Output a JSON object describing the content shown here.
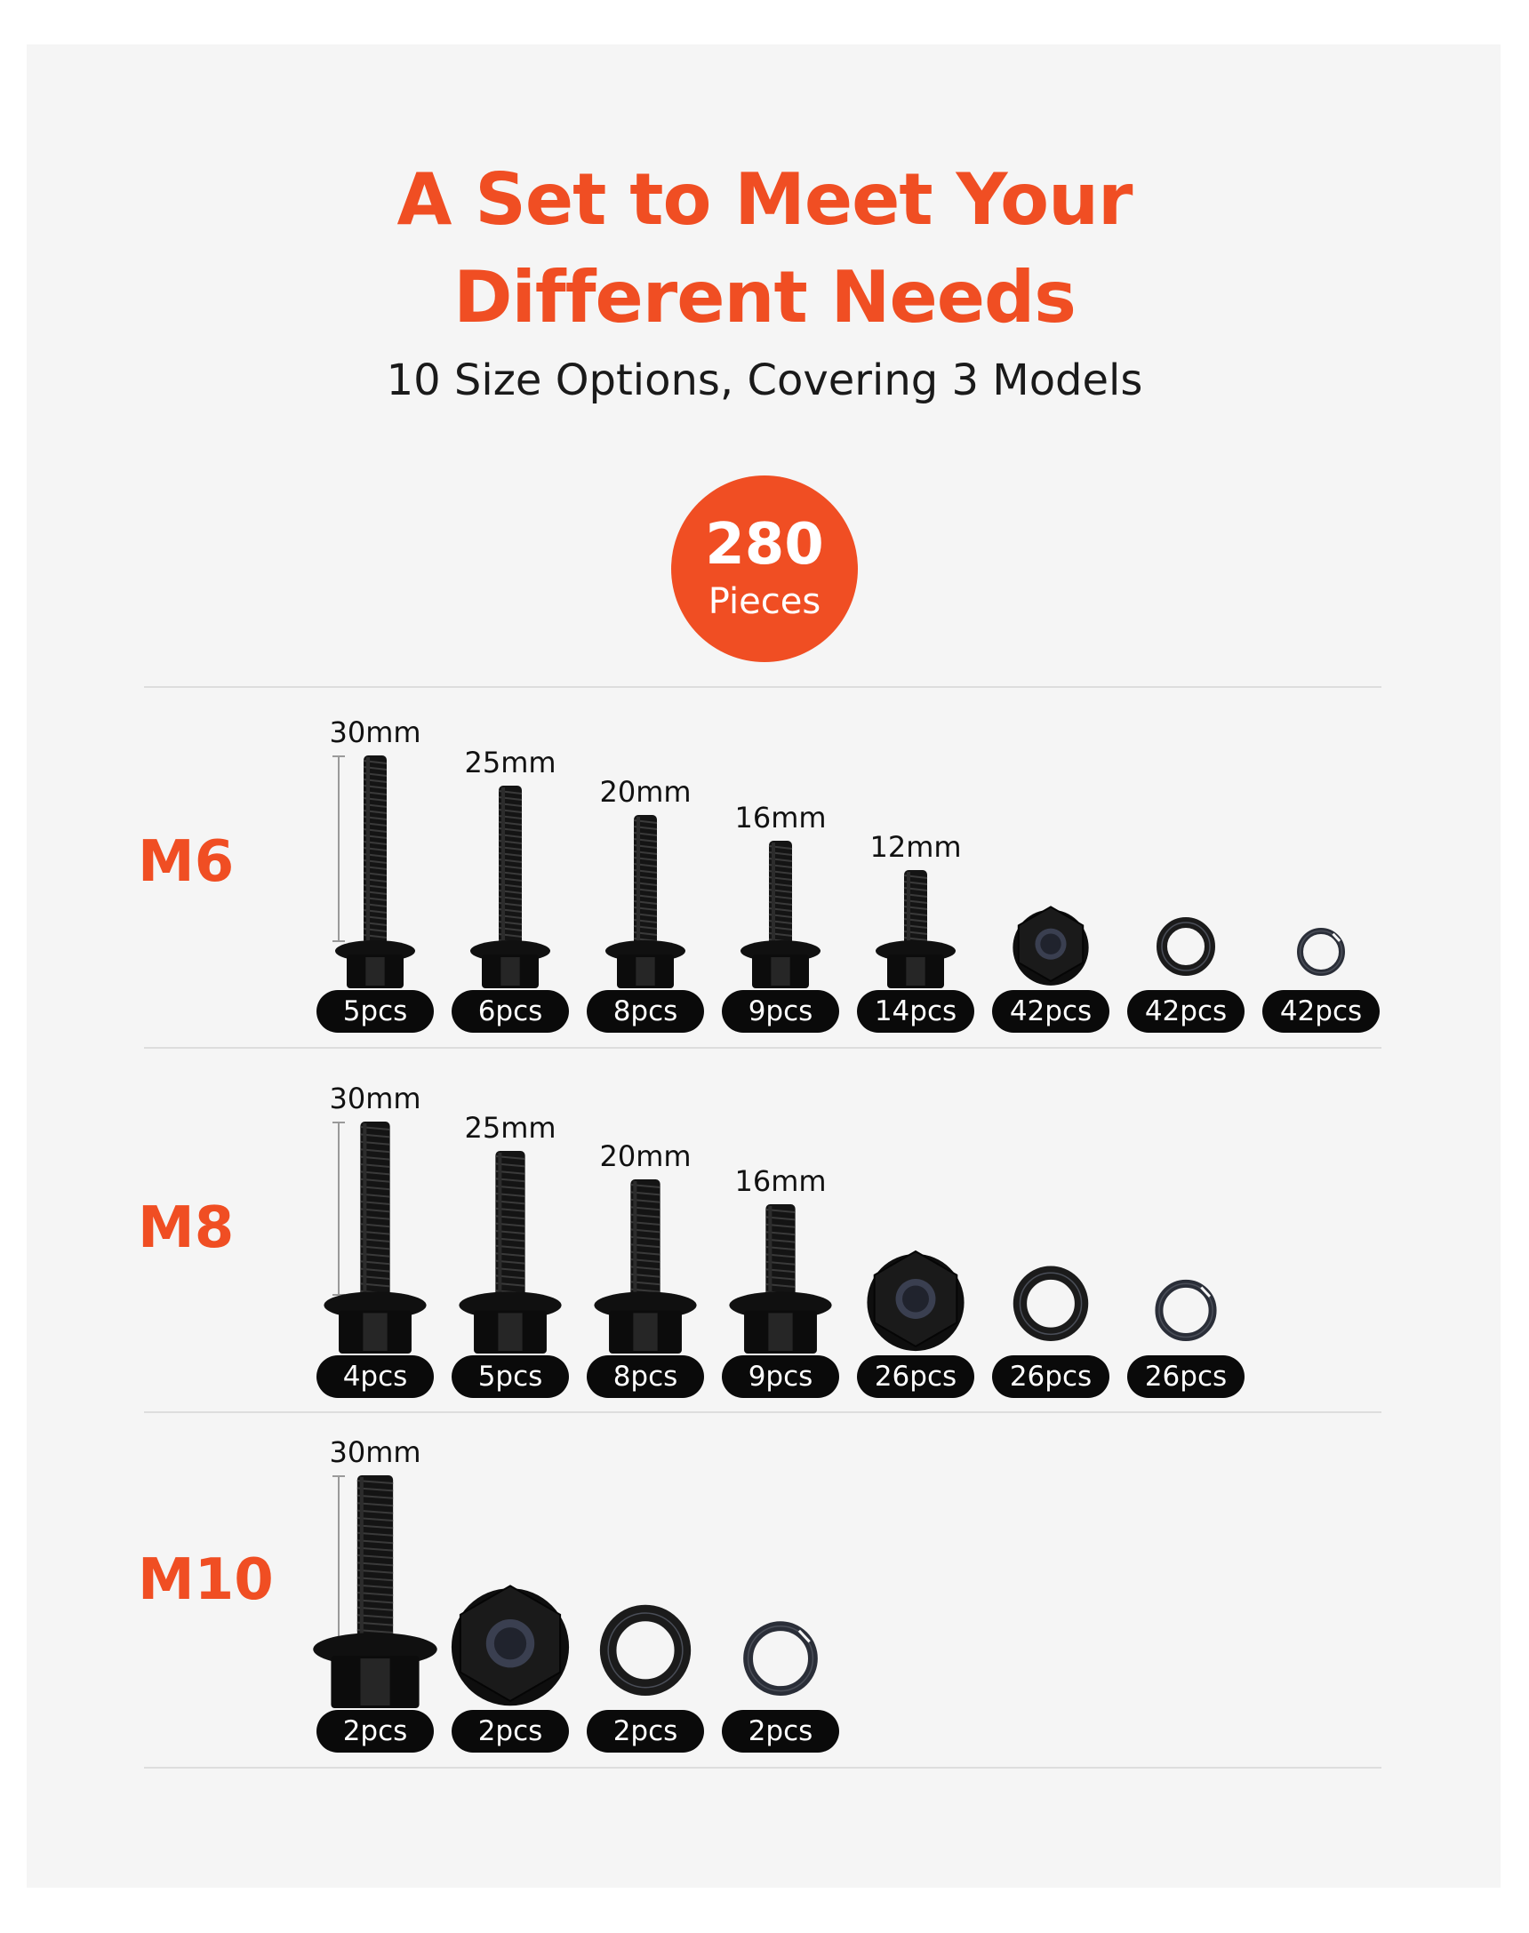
{
  "header": {
    "title_line1": "A Set to Meet Your",
    "title_line2": "Different Needs",
    "subtitle": "10 Size Options, Covering 3 Models"
  },
  "badge": {
    "number": "280",
    "label": "Pieces"
  },
  "colors": {
    "accent": "#f04e23",
    "pill": "#0a0a0a",
    "background": "#f5f5f5"
  },
  "groups": [
    {
      "model": "M6",
      "items": [
        {
          "type": "bolt",
          "length": "30mm",
          "qty": "5pcs"
        },
        {
          "type": "bolt",
          "length": "25mm",
          "qty": "6pcs"
        },
        {
          "type": "bolt",
          "length": "20mm",
          "qty": "8pcs"
        },
        {
          "type": "bolt",
          "length": "16mm",
          "qty": "9pcs"
        },
        {
          "type": "bolt",
          "length": "12mm",
          "qty": "14pcs"
        },
        {
          "type": "flange-nut",
          "qty": "42pcs"
        },
        {
          "type": "flat-washer",
          "qty": "42pcs"
        },
        {
          "type": "lock-washer",
          "qty": "42pcs"
        }
      ]
    },
    {
      "model": "M8",
      "items": [
        {
          "type": "bolt",
          "length": "30mm",
          "qty": "4pcs"
        },
        {
          "type": "bolt",
          "length": "25mm",
          "qty": "5pcs"
        },
        {
          "type": "bolt",
          "length": "20mm",
          "qty": "8pcs"
        },
        {
          "type": "bolt",
          "length": "16mm",
          "qty": "9pcs"
        },
        {
          "type": "flange-nut",
          "qty": "26pcs"
        },
        {
          "type": "flat-washer",
          "qty": "26pcs"
        },
        {
          "type": "lock-washer",
          "qty": "26pcs"
        }
      ]
    },
    {
      "model": "M10",
      "items": [
        {
          "type": "bolt",
          "length": "30mm",
          "qty": "2pcs"
        },
        {
          "type": "flange-nut",
          "qty": "2pcs"
        },
        {
          "type": "flat-washer",
          "qty": "2pcs"
        },
        {
          "type": "lock-washer",
          "qty": "2pcs"
        }
      ]
    }
  ]
}
